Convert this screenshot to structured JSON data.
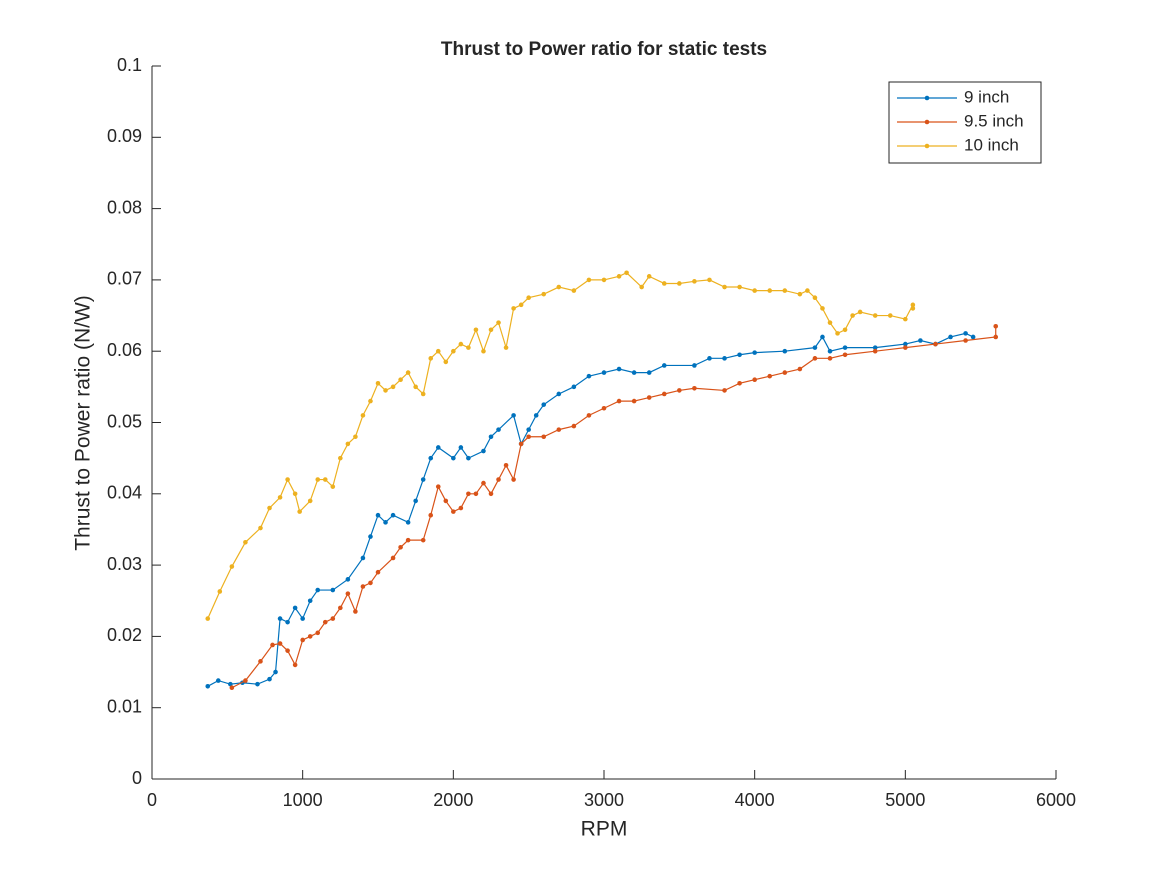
{
  "chart_data": {
    "type": "line",
    "title": "Thrust to Power ratio for static tests",
    "x_label": "RPM",
    "y_label": "Thrust to Power ratio (N/W)",
    "xlim": [
      0,
      6000
    ],
    "xticks": [
      0,
      1000,
      2000,
      3000,
      4000,
      5000,
      6000
    ],
    "ylim": [
      0,
      0.1
    ],
    "yticks": [
      0,
      0.01,
      0.02,
      0.03,
      0.04,
      0.05,
      0.06,
      0.07,
      0.08,
      0.09,
      0.1
    ],
    "legend": "top-right",
    "series": [
      {
        "name": "9 inch",
        "color": "#0072bd",
        "x": [
          370,
          440,
          520,
          600,
          700,
          780,
          820,
          850,
          900,
          950,
          1000,
          1050,
          1100,
          1200,
          1300,
          1400,
          1450,
          1500,
          1550,
          1600,
          1700,
          1750,
          1800,
          1850,
          1900,
          2000,
          2050,
          2100,
          2200,
          2250,
          2300,
          2400,
          2450,
          2500,
          2550,
          2600,
          2700,
          2800,
          2900,
          3000,
          3100,
          3200,
          3300,
          3400,
          3600,
          3700,
          3800,
          3900,
          4000,
          4200,
          4400,
          4450,
          4500,
          4600,
          4800,
          5000,
          5100,
          5200,
          5300,
          5400,
          5450
        ],
        "values": [
          0.013,
          0.0138,
          0.0133,
          0.0135,
          0.0133,
          0.014,
          0.015,
          0.0225,
          0.022,
          0.024,
          0.0225,
          0.025,
          0.0265,
          0.0265,
          0.028,
          0.031,
          0.034,
          0.037,
          0.036,
          0.037,
          0.036,
          0.039,
          0.042,
          0.045,
          0.0465,
          0.045,
          0.0465,
          0.045,
          0.046,
          0.048,
          0.049,
          0.051,
          0.047,
          0.049,
          0.051,
          0.0525,
          0.054,
          0.055,
          0.0565,
          0.057,
          0.0575,
          0.057,
          0.057,
          0.058,
          0.058,
          0.059,
          0.059,
          0.0595,
          0.0598,
          0.06,
          0.0605,
          0.062,
          0.06,
          0.0605,
          0.0605,
          0.061,
          0.0615,
          0.061,
          0.062,
          0.0625,
          0.062
        ]
      },
      {
        "name": "9.5 inch",
        "color": "#d95319",
        "x": [
          530,
          620,
          720,
          800,
          850,
          900,
          950,
          1000,
          1050,
          1100,
          1150,
          1200,
          1250,
          1300,
          1350,
          1400,
          1450,
          1500,
          1600,
          1650,
          1700,
          1800,
          1850,
          1900,
          1950,
          2000,
          2050,
          2100,
          2150,
          2200,
          2250,
          2300,
          2350,
          2400,
          2450,
          2500,
          2600,
          2700,
          2800,
          2900,
          3000,
          3100,
          3200,
          3300,
          3400,
          3500,
          3600,
          3800,
          3900,
          4000,
          4100,
          4200,
          4300,
          4400,
          4500,
          4600,
          4800,
          5000,
          5200,
          5400,
          5600,
          5600
        ],
        "values": [
          0.0128,
          0.0138,
          0.0165,
          0.0188,
          0.019,
          0.018,
          0.016,
          0.0195,
          0.02,
          0.0205,
          0.022,
          0.0225,
          0.024,
          0.026,
          0.0235,
          0.027,
          0.0275,
          0.029,
          0.031,
          0.0325,
          0.0335,
          0.0335,
          0.037,
          0.041,
          0.039,
          0.0375,
          0.038,
          0.04,
          0.04,
          0.0415,
          0.04,
          0.042,
          0.044,
          0.042,
          0.047,
          0.048,
          0.048,
          0.049,
          0.0495,
          0.051,
          0.052,
          0.053,
          0.053,
          0.0535,
          0.054,
          0.0545,
          0.0548,
          0.0545,
          0.0555,
          0.056,
          0.0565,
          0.057,
          0.0575,
          0.059,
          0.059,
          0.0595,
          0.06,
          0.0605,
          0.061,
          0.0615,
          0.062,
          0.0635
        ]
      },
      {
        "name": "10 inch",
        "color": "#edb120",
        "x": [
          370,
          450,
          530,
          620,
          720,
          780,
          850,
          900,
          950,
          980,
          1050,
          1100,
          1150,
          1200,
          1250,
          1300,
          1350,
          1400,
          1450,
          1500,
          1550,
          1600,
          1650,
          1700,
          1750,
          1800,
          1850,
          1900,
          1950,
          2000,
          2050,
          2100,
          2150,
          2200,
          2250,
          2300,
          2350,
          2400,
          2450,
          2500,
          2600,
          2700,
          2800,
          2900,
          3000,
          3100,
          3150,
          3250,
          3300,
          3400,
          3500,
          3600,
          3700,
          3800,
          3900,
          4000,
          4100,
          4200,
          4300,
          4350,
          4400,
          4450,
          4500,
          4550,
          4600,
          4650,
          4700,
          4800,
          4900,
          5000,
          5050,
          5050
        ],
        "values": [
          0.0225,
          0.0263,
          0.0298,
          0.0332,
          0.0352,
          0.038,
          0.0395,
          0.042,
          0.04,
          0.0375,
          0.039,
          0.042,
          0.042,
          0.041,
          0.045,
          0.047,
          0.048,
          0.051,
          0.053,
          0.0555,
          0.0545,
          0.055,
          0.056,
          0.057,
          0.055,
          0.054,
          0.059,
          0.06,
          0.0585,
          0.06,
          0.061,
          0.0605,
          0.063,
          0.06,
          0.063,
          0.064,
          0.0605,
          0.066,
          0.0665,
          0.0675,
          0.068,
          0.069,
          0.0685,
          0.07,
          0.07,
          0.0705,
          0.071,
          0.069,
          0.0705,
          0.0695,
          0.0695,
          0.0698,
          0.07,
          0.069,
          0.069,
          0.0685,
          0.0685,
          0.0685,
          0.068,
          0.0685,
          0.0675,
          0.066,
          0.064,
          0.0625,
          0.063,
          0.065,
          0.0655,
          0.065,
          0.065,
          0.0645,
          0.0665,
          0.066
        ]
      }
    ]
  }
}
